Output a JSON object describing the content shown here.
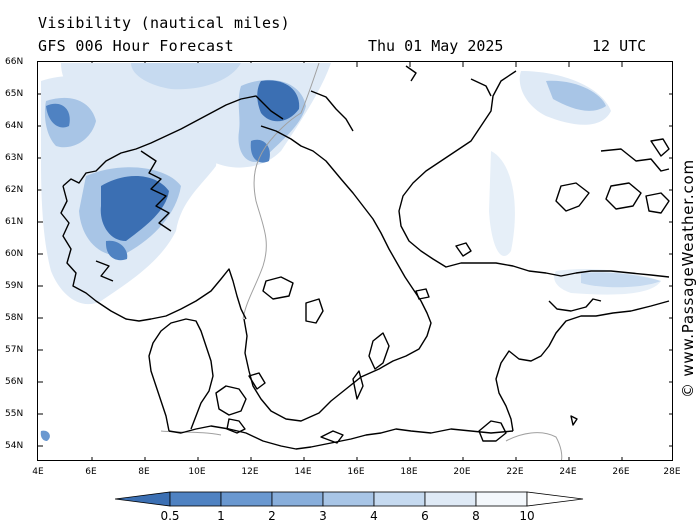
{
  "header": {
    "title": "Visibility (nautical miles)",
    "subtitle": "GFS 006 Hour Forecast",
    "date": "Thu 01 May 2025",
    "hour": "12 UTC"
  },
  "watermark": "© www.PassageWeather.com",
  "axes": {
    "lat_labels": [
      "66N",
      "65N",
      "64N",
      "63N",
      "62N",
      "61N",
      "60N",
      "59N",
      "58N",
      "57N",
      "56N",
      "55N",
      "54N"
    ],
    "lon_labels": [
      "4E",
      "6E",
      "8E",
      "10E",
      "12E",
      "14E",
      "16E",
      "18E",
      "20E",
      "22E",
      "24E",
      "26E",
      "28E"
    ]
  },
  "legend": {
    "labels": [
      "0.5",
      "1",
      "2",
      "3",
      "4",
      "6",
      "8",
      "10"
    ],
    "colors": [
      "#3b6fb3",
      "#4f82c2",
      "#6a98d0",
      "#88aedb",
      "#a8c5e6",
      "#c6daf0",
      "#dfeaf6",
      "#f4f8fc",
      "#ffffff"
    ]
  },
  "colors": {
    "low_vis_dark": "#3b6fb3",
    "low_vis_mid": "#6a98d0",
    "low_vis_light": "#a8c5e6",
    "coast": "#000000",
    "border": "#999999"
  }
}
